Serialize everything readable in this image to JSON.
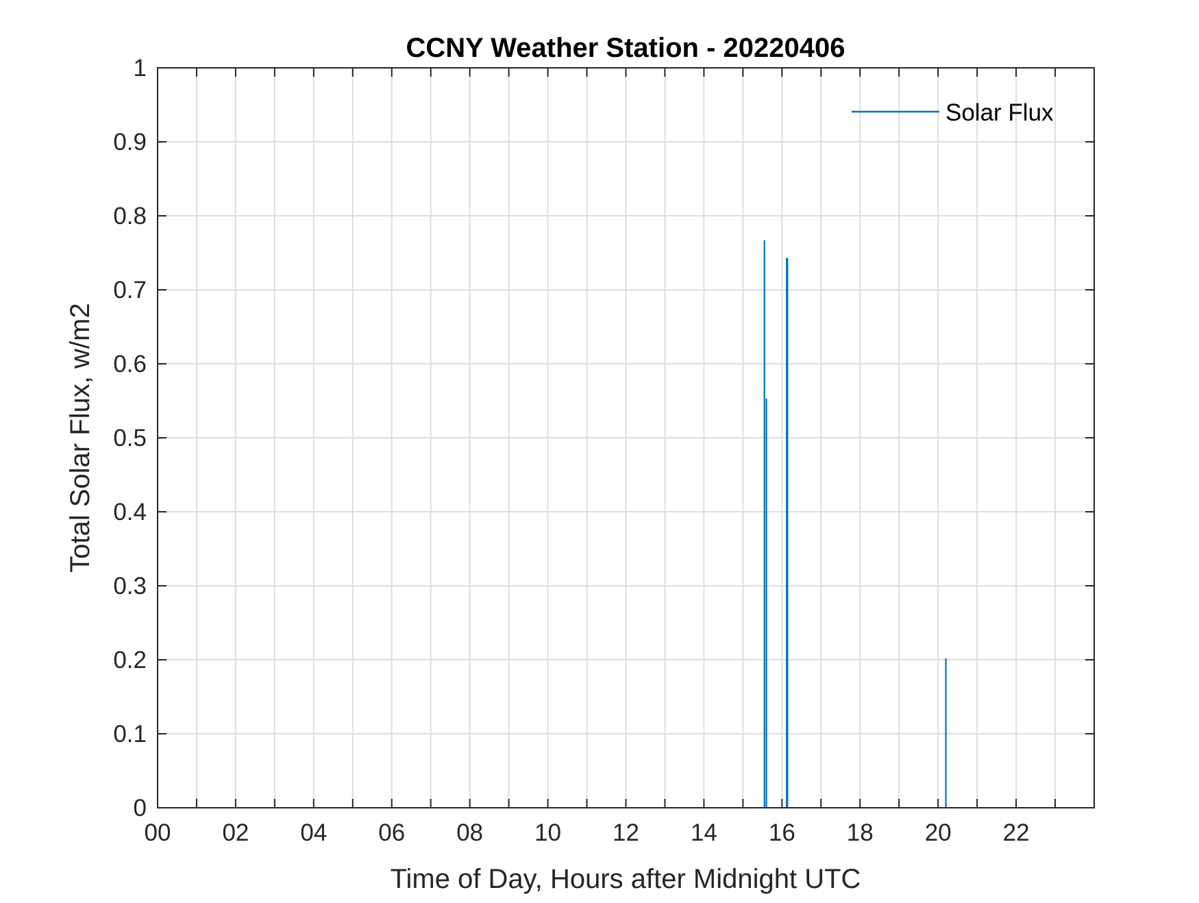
{
  "chart_data": {
    "type": "line",
    "title": "CCNY Weather Station - 20220406",
    "xlabel": "Time of Day, Hours after Midnight UTC",
    "ylabel": "Total Solar Flux, w/m2",
    "xlim": [
      0,
      24
    ],
    "ylim": [
      0,
      1
    ],
    "xticks": [
      0,
      2,
      4,
      6,
      8,
      10,
      12,
      14,
      16,
      18,
      20,
      22
    ],
    "xtick_labels": [
      "00",
      "02",
      "04",
      "06",
      "08",
      "10",
      "12",
      "14",
      "16",
      "18",
      "20",
      "22"
    ],
    "xgrid_hours": [
      1,
      2,
      3,
      4,
      5,
      6,
      7,
      8,
      9,
      10,
      11,
      12,
      13,
      14,
      15,
      16,
      17,
      18,
      19,
      20,
      21,
      22,
      23
    ],
    "yticks": [
      0,
      0.1,
      0.2,
      0.3,
      0.4,
      0.5,
      0.6,
      0.7,
      0.8,
      0.9,
      1
    ],
    "ytick_labels": [
      "0",
      "0.1",
      "0.2",
      "0.3",
      "0.4",
      "0.5",
      "0.6",
      "0.7",
      "0.8",
      "0.9",
      "1"
    ],
    "grid": true,
    "legend_position": "top-right",
    "series": [
      {
        "name": "Solar Flux",
        "color": "#0072BD",
        "spikes": [
          {
            "x": 15.55,
            "y": 0.767
          },
          {
            "x": 15.6,
            "y": 0.553
          },
          {
            "x": 16.12,
            "y": 0.743
          },
          {
            "x": 16.14,
            "y": 0.743
          },
          {
            "x": 20.2,
            "y": 0.202
          }
        ]
      }
    ]
  }
}
